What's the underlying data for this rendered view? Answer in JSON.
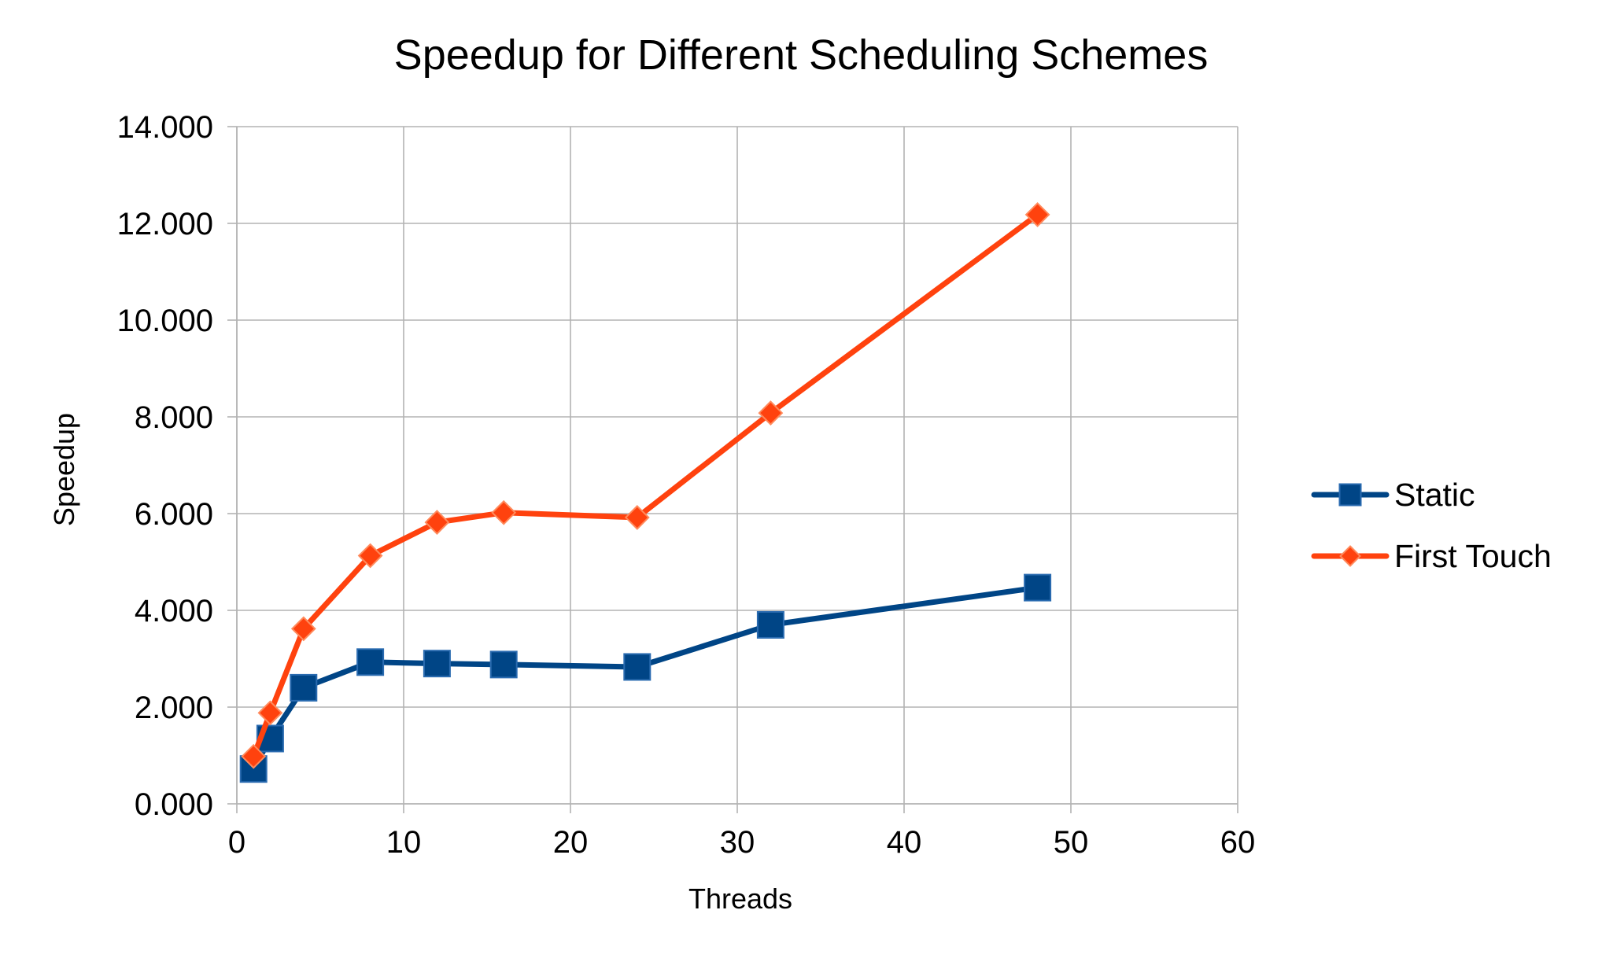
{
  "chart_data": {
    "type": "line",
    "title": "Speedup for Different Scheduling Schemes",
    "xlabel": "Threads",
    "ylabel": "Speedup",
    "xlim": [
      0,
      60
    ],
    "ylim": [
      0,
      14
    ],
    "x_ticks": [
      0,
      10,
      20,
      30,
      40,
      50,
      60
    ],
    "x_tick_labels": [
      "0",
      "10",
      "20",
      "30",
      "40",
      "50",
      "60"
    ],
    "y_ticks": [
      0,
      2,
      4,
      6,
      8,
      10,
      12,
      14
    ],
    "y_tick_labels": [
      "0.000",
      "2.000",
      "4.000",
      "6.000",
      "8.000",
      "10.000",
      "12.000",
      "14.000"
    ],
    "grid": true,
    "legend_position": "right",
    "series": [
      {
        "name": "Static",
        "color": "#004586",
        "marker": "square",
        "x": [
          1,
          2,
          4,
          8,
          12,
          16,
          24,
          32,
          48
        ],
        "y": [
          0.72,
          1.35,
          2.4,
          2.93,
          2.9,
          2.88,
          2.83,
          3.7,
          4.47
        ]
      },
      {
        "name": "First Touch",
        "color": "#ff420e",
        "marker": "diamond",
        "x": [
          1,
          2,
          4,
          8,
          12,
          16,
          24,
          32,
          48
        ],
        "y": [
          0.98,
          1.88,
          3.62,
          5.13,
          5.82,
          6.02,
          5.92,
          8.08,
          12.18
        ]
      }
    ]
  }
}
